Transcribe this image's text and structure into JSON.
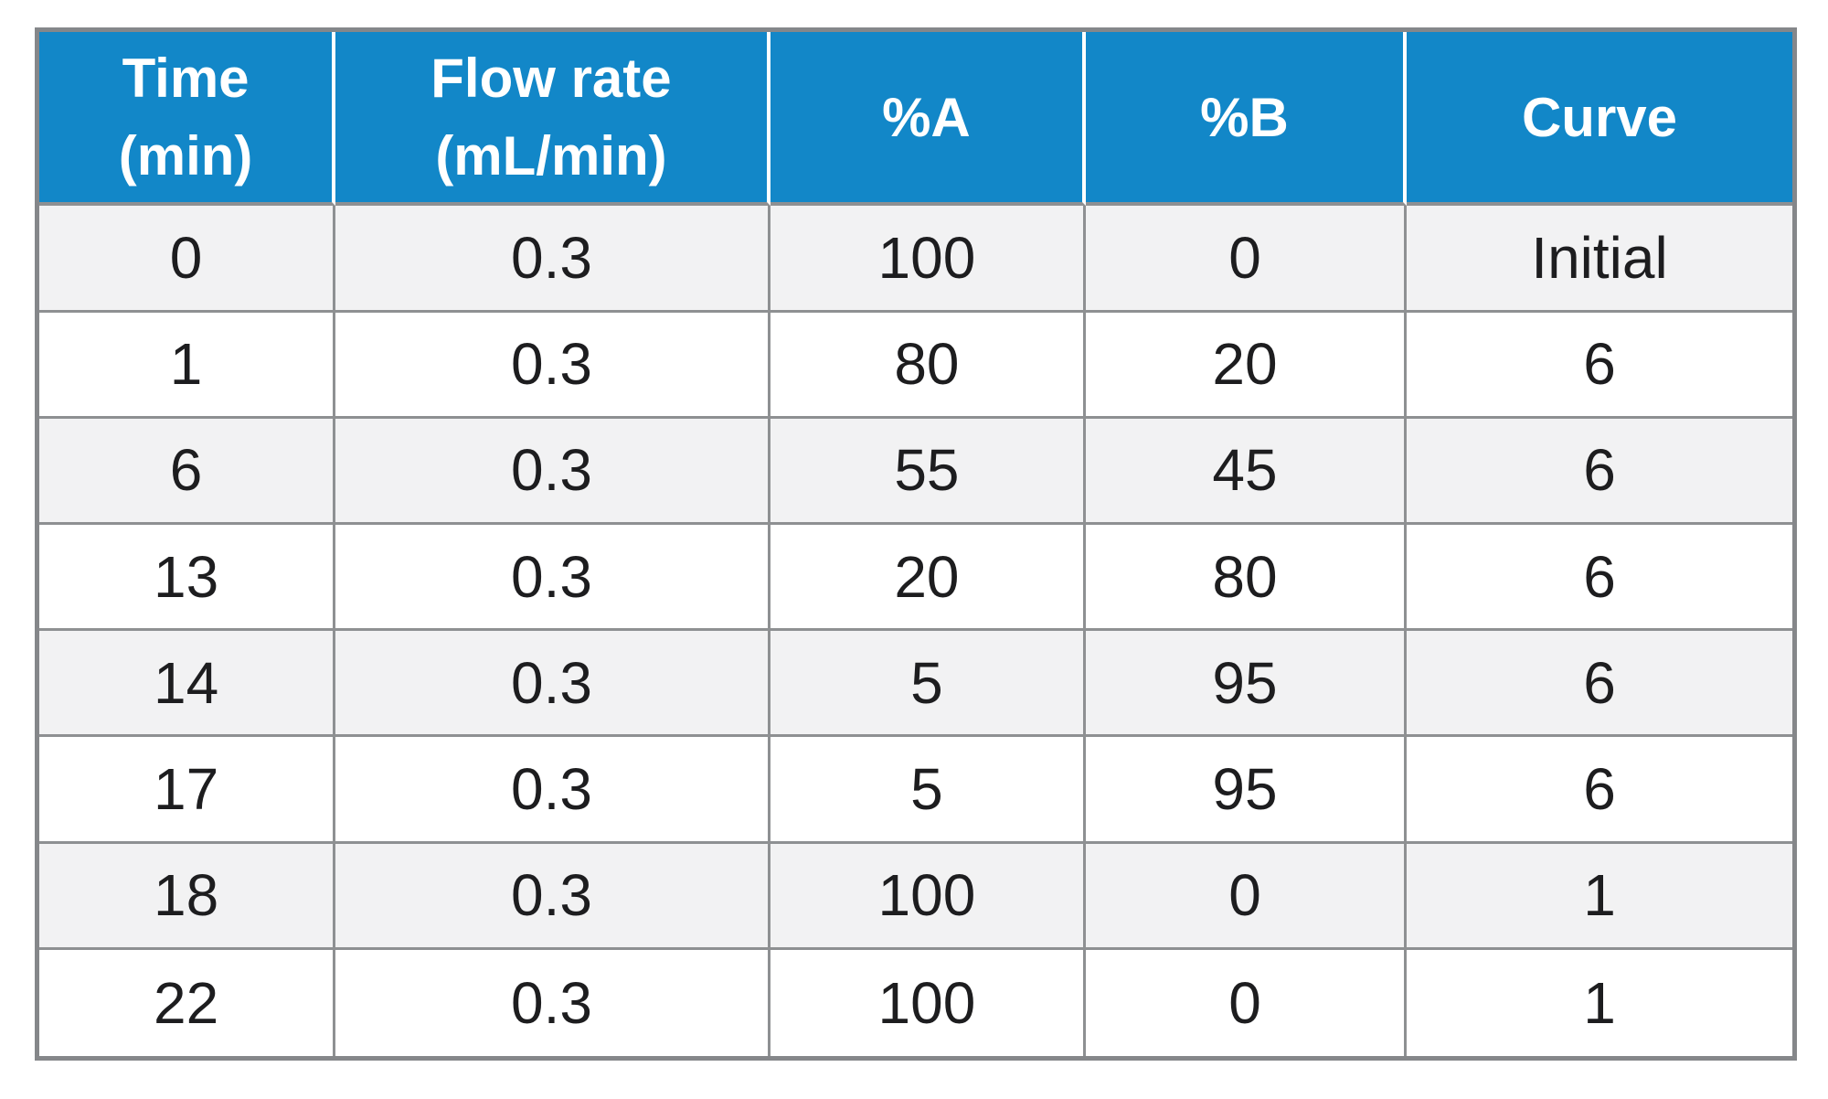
{
  "colors": {
    "header_bg": "#1287c8",
    "header_text": "#ffffff",
    "row_alt_bg": "#f2f2f3",
    "row_bg": "#ffffff",
    "border_inner": "#8e9092",
    "border_outer": "#85878a",
    "body_text": "#1d1d1f"
  },
  "chart_data": {
    "type": "table",
    "title": "",
    "columns": [
      "Time (min)",
      "Flow rate (mL/min)",
      "%A",
      "%B",
      "Curve"
    ],
    "rows": [
      [
        0,
        0.3,
        100,
        0,
        "Initial"
      ],
      [
        1,
        0.3,
        80,
        20,
        6
      ],
      [
        6,
        0.3,
        55,
        45,
        6
      ],
      [
        13,
        0.3,
        20,
        80,
        6
      ],
      [
        14,
        0.3,
        5,
        95,
        6
      ],
      [
        17,
        0.3,
        5,
        95,
        6
      ],
      [
        18,
        0.3,
        100,
        0,
        1
      ],
      [
        22,
        0.3,
        100,
        0,
        1
      ]
    ]
  },
  "table": {
    "headers": [
      "Time\n(min)",
      "Flow rate\n(mL/min)",
      "%A",
      "%B",
      "Curve"
    ],
    "rows": [
      [
        "0",
        "0.3",
        "100",
        "0",
        "Initial"
      ],
      [
        "1",
        "0.3",
        "80",
        "20",
        "6"
      ],
      [
        "6",
        "0.3",
        "55",
        "45",
        "6"
      ],
      [
        "13",
        "0.3",
        "20",
        "80",
        "6"
      ],
      [
        "14",
        "0.3",
        "5",
        "95",
        "6"
      ],
      [
        "17",
        "0.3",
        "5",
        "95",
        "6"
      ],
      [
        "18",
        "0.3",
        "100",
        "0",
        "1"
      ],
      [
        "22",
        "0.3",
        "100",
        "0",
        "1"
      ]
    ]
  }
}
